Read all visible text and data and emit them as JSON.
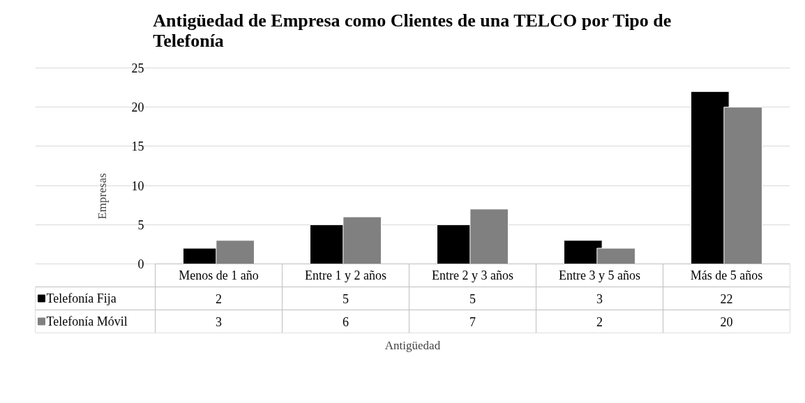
{
  "chart_data": {
    "type": "bar",
    "title": "Antigüedad de Empresa como Clientes de una TELCO por Tipo de Telefonía",
    "xlabel": "Antigüedad",
    "ylabel": "Empresas",
    "categories": [
      "Menos de 1 año",
      "Entre 1 y 2 años",
      "Entre 2 y 3 años",
      "Entre 3 y 5 años",
      "Más de 5 años"
    ],
    "series": [
      {
        "name": "Telefonía Fija",
        "color": "#000000",
        "values": [
          2,
          5,
          5,
          3,
          22
        ]
      },
      {
        "name": "Telefonía Móvil",
        "color": "#808080",
        "values": [
          3,
          6,
          7,
          2,
          20
        ]
      }
    ],
    "ylim": [
      0,
      25
    ],
    "yticks": [
      0,
      5,
      10,
      15,
      20,
      25
    ],
    "grid": "y",
    "legend": "bottom",
    "data_labels": true
  }
}
